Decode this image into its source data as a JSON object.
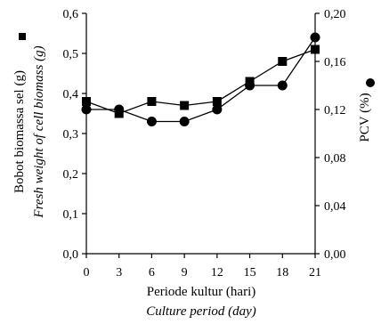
{
  "chart_data": {
    "type": "line",
    "x": [
      0,
      3,
      6,
      9,
      12,
      15,
      18,
      21
    ],
    "xlim": [
      0,
      21
    ],
    "grid": false,
    "xlabel": "Periode kultur (hari)",
    "xlabel_en": "Culture period (day)",
    "ylabel_left": "Bobot biomassa sel (g)",
    "ylabel_left_en": "Fresh weight of cell biomass (g)",
    "ylabel_right": "PCV (%)",
    "ylim_left": [
      0,
      0.6
    ],
    "ylim_right": [
      0,
      0.2
    ],
    "x_tick_labels": [
      "0",
      "3",
      "6",
      "9",
      "12",
      "15",
      "18",
      "21"
    ],
    "y_left_tick_labels": [
      "0,0",
      "0,1",
      "0,2",
      "0,3",
      "0,4",
      "0,5",
      "0,6"
    ],
    "y_right_tick_labels": [
      "0,00",
      "0,04",
      "0,08",
      "0,12",
      "0,16",
      "0,20"
    ],
    "series": [
      {
        "axis": "left",
        "marker": "square",
        "color": "#000000",
        "values": [
          0.38,
          0.35,
          0.38,
          0.37,
          0.38,
          0.43,
          0.48,
          0.51
        ]
      },
      {
        "axis": "right",
        "marker": "circle",
        "color": "#000000",
        "values": [
          0.12,
          0.12,
          0.11,
          0.11,
          0.12,
          0.14,
          0.14,
          0.18
        ]
      }
    ],
    "legend": [
      {
        "marker": "square",
        "placement": "left-axis-title"
      },
      {
        "marker": "circle",
        "placement": "right-axis-title"
      }
    ]
  }
}
